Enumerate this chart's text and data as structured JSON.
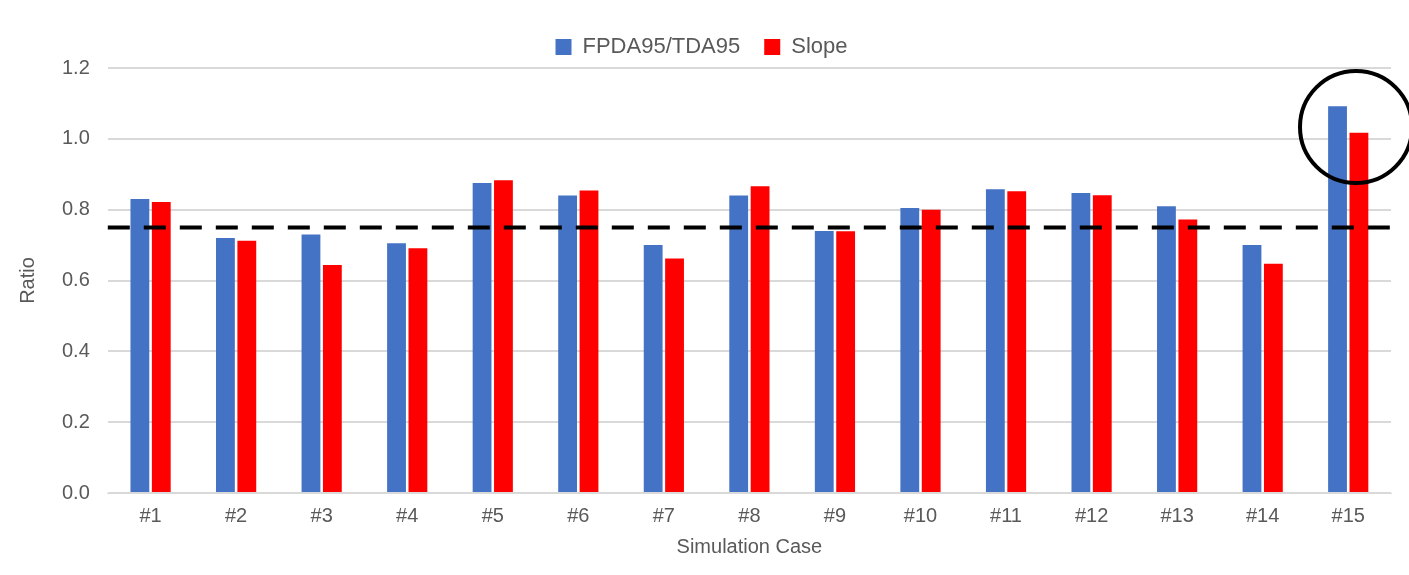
{
  "chart_data": {
    "type": "bar",
    "xlabel": "Simulation Case",
    "ylabel": "Ratio",
    "categories": [
      "#1",
      "#2",
      "#3",
      "#4",
      "#5",
      "#6",
      "#7",
      "#8",
      "#9",
      "#10",
      "#11",
      "#12",
      "#13",
      "#14",
      "#15"
    ],
    "series": [
      {
        "name": "FPDA95/TDA95",
        "color": "#4472c4",
        "values": [
          0.83,
          0.72,
          0.73,
          0.705,
          0.875,
          0.84,
          0.7,
          0.84,
          0.74,
          0.805,
          0.858,
          0.847,
          0.81,
          0.7,
          1.092
        ]
      },
      {
        "name": "Slope",
        "color": "#ff0000",
        "values": [
          0.822,
          0.712,
          0.644,
          0.691,
          0.883,
          0.854,
          0.662,
          0.866,
          0.739,
          0.8,
          0.852,
          0.841,
          0.772,
          0.647,
          1.017
        ]
      }
    ],
    "ylim": [
      0,
      1.2
    ],
    "yticks": [
      {
        "value": 0,
        "label": "0.0"
      },
      {
        "value": 0.2,
        "label": "0.2"
      },
      {
        "value": 0.4,
        "label": "0.4"
      },
      {
        "value": 0.6,
        "label": "0.6"
      },
      {
        "value": 0.8,
        "label": "0.8"
      },
      {
        "value": 1,
        "label": "1.0"
      },
      {
        "value": 1.2,
        "label": "1.2"
      }
    ],
    "ref_lines": [
      {
        "axis": "y",
        "value": 0.75,
        "color": "#000000",
        "line_style": "dashed"
      }
    ],
    "grid": "y",
    "legend": "top"
  }
}
